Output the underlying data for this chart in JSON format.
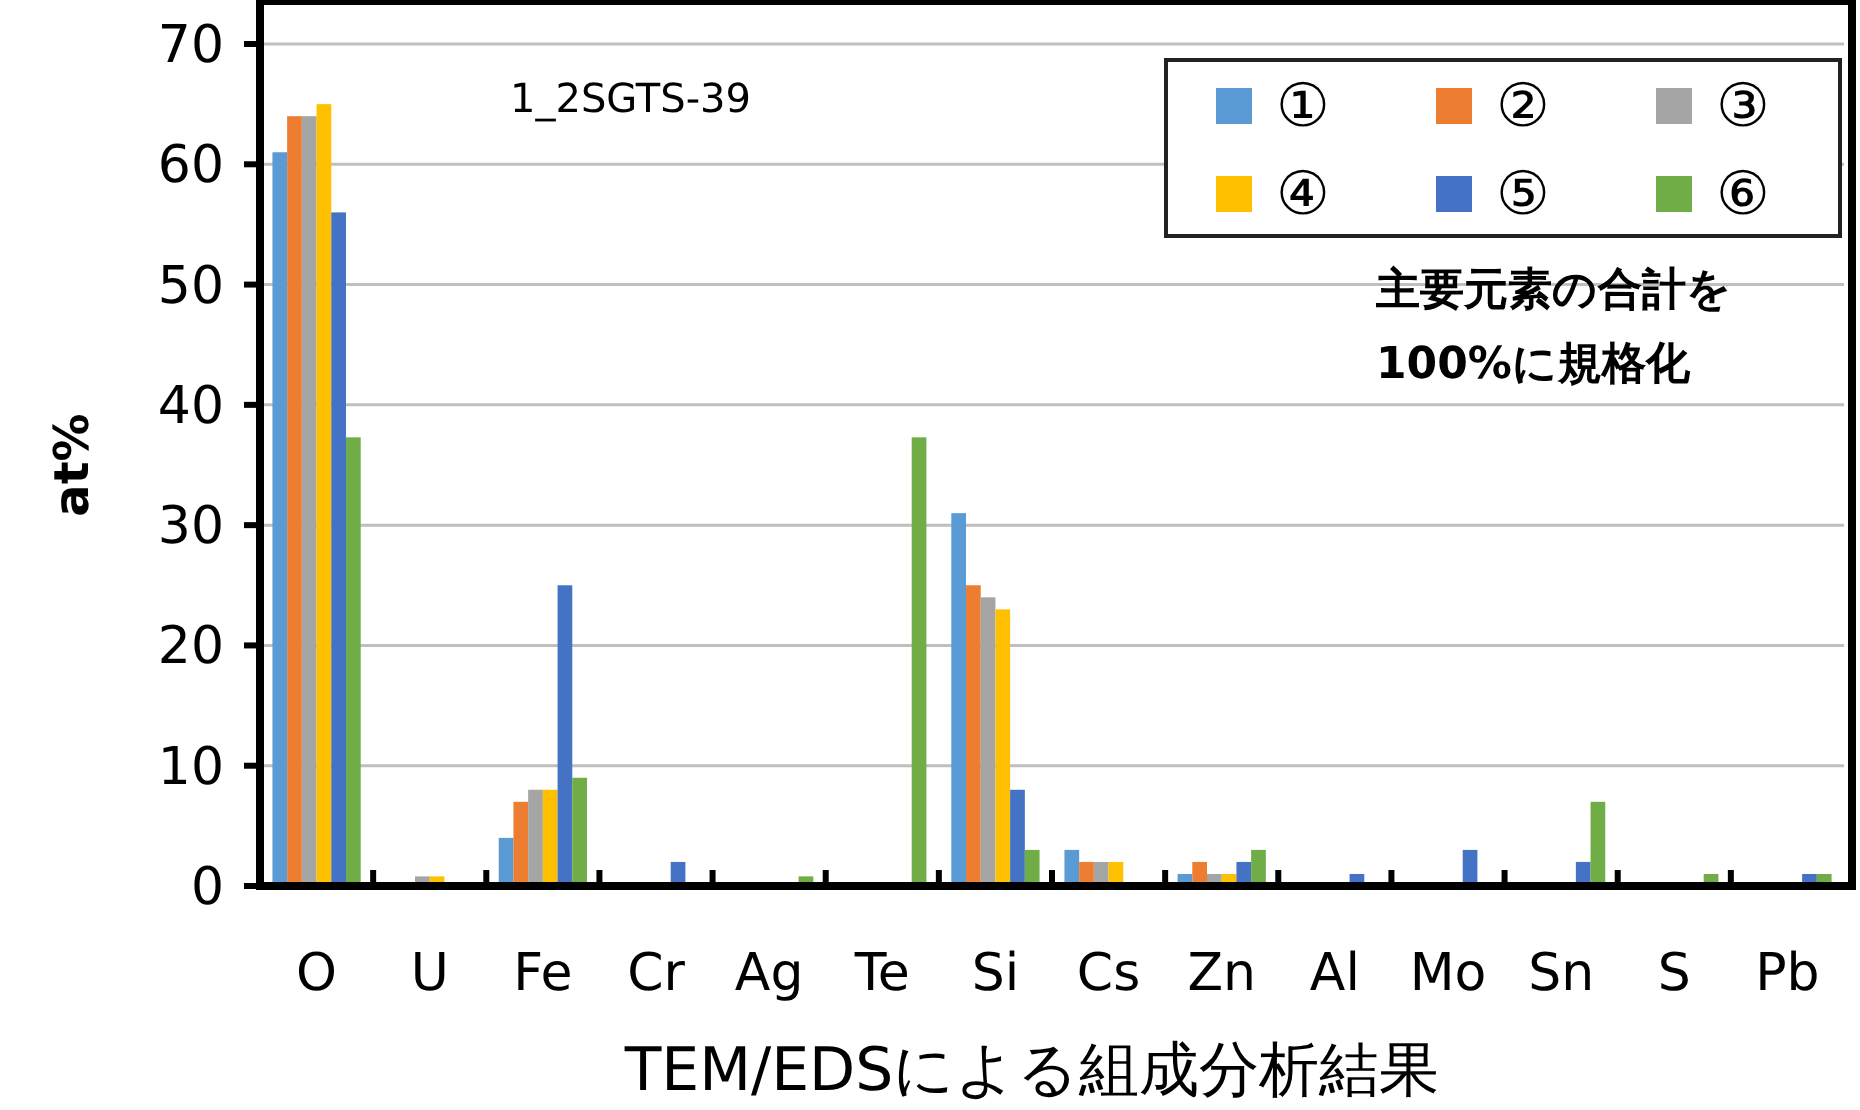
{
  "chart_data": {
    "type": "bar",
    "title": "1_2SGTS-39",
    "xlabel": "TEM/EDSによる組成分析結果",
    "ylabel": "at%",
    "annotations": [
      "主要元素の合計を\n100%に規格化"
    ],
    "categories": [
      "O",
      "U",
      "Fe",
      "Cr",
      "Ag",
      "Te",
      "Si",
      "Cs",
      "Zn",
      "Al",
      "Mo",
      "Sn",
      "S",
      "Pb"
    ],
    "series": [
      {
        "name": "①",
        "color": "#5b9bd5",
        "values": [
          61,
          0,
          4,
          0,
          0,
          0,
          31,
          3,
          1,
          0,
          0,
          0,
          0,
          0
        ]
      },
      {
        "name": "②",
        "color": "#ed7d31",
        "values": [
          64,
          0,
          7,
          0,
          0,
          0,
          25,
          2,
          2,
          0,
          0,
          0,
          0,
          0
        ]
      },
      {
        "name": "③",
        "color": "#a5a5a5",
        "values": [
          64,
          0.8,
          8,
          0,
          0,
          0,
          24,
          2,
          1,
          0,
          0,
          0,
          0,
          0
        ]
      },
      {
        "name": "④",
        "color": "#ffc000",
        "values": [
          65,
          0.8,
          8,
          0,
          0,
          0,
          23,
          2,
          1,
          0,
          0,
          0,
          0,
          0
        ]
      },
      {
        "name": "⑤",
        "color": "#4472c4",
        "values": [
          56,
          0,
          25,
          2,
          0,
          0,
          8,
          0,
          2,
          1,
          3,
          2,
          0,
          1
        ]
      },
      {
        "name": "⑥",
        "color": "#70ad47",
        "values": [
          37.3,
          0,
          9,
          0,
          0.8,
          37.3,
          3,
          0,
          3,
          0,
          0,
          7,
          1,
          1
        ]
      }
    ],
    "ylim": [
      0,
      70
    ],
    "yticks": [
      0,
      10,
      20,
      30,
      40,
      50,
      60,
      70
    ],
    "grid": "y",
    "legend": "top right"
  }
}
